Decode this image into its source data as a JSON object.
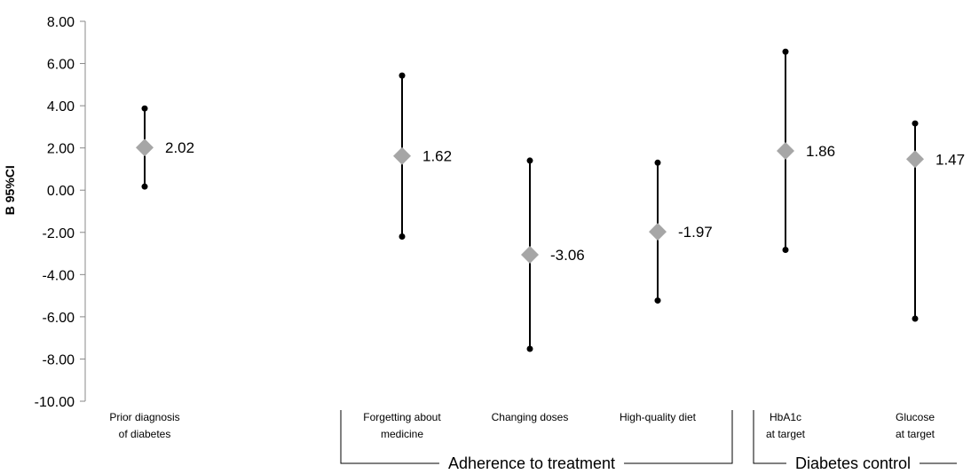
{
  "chart_data": {
    "type": "error-bar",
    "ylabel": "B 95%CI",
    "ylim": [
      -10,
      8
    ],
    "yticks": [
      "8.00",
      "6.00",
      "4.00",
      "2.00",
      "0.00",
      "-2.00",
      "-4.00",
      "-6.00",
      "-8.00",
      "-10.00"
    ],
    "marker_color": "#a6a6a6",
    "points": [
      {
        "category": [
          "Prior diagnosis",
          "of diabetes"
        ],
        "estimate": 2.02,
        "estimate_label": "2.02",
        "lower": 0.17,
        "upper": 3.87
      },
      {
        "category": [
          "Forgetting about",
          "medicine"
        ],
        "estimate": 1.62,
        "estimate_label": "1.62",
        "lower": -2.2,
        "upper": 5.43
      },
      {
        "category": [
          "Changing doses"
        ],
        "estimate": -3.06,
        "estimate_label": "-3.06",
        "lower": -7.52,
        "upper": 1.4
      },
      {
        "category": [
          "High-quality diet"
        ],
        "estimate": -1.97,
        "estimate_label": "-1.97",
        "lower": -5.23,
        "upper": 1.3
      },
      {
        "category": [
          "HbA1c",
          "at target"
        ],
        "estimate": 1.86,
        "estimate_label": "1.86",
        "lower": -2.83,
        "upper": 6.56
      },
      {
        "category": [
          "Glucose",
          "at target"
        ],
        "estimate": 1.47,
        "estimate_label": "1.47",
        "lower": -6.09,
        "upper": 3.16
      }
    ],
    "groups": [
      {
        "label": "Adherence to treatment",
        "points": [
          1,
          2,
          3
        ]
      },
      {
        "label": "Diabetes control",
        "points": [
          4,
          5
        ]
      }
    ]
  }
}
